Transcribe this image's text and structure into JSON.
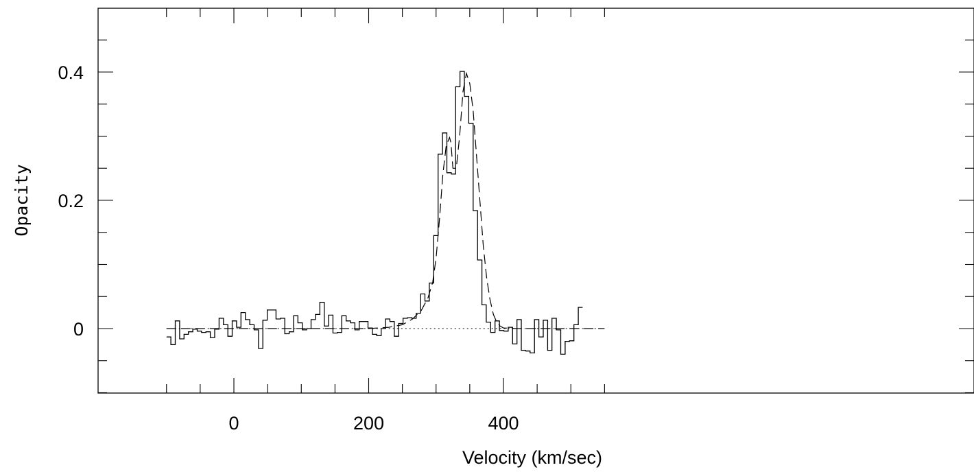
{
  "chart_data": {
    "type": "line",
    "title": "",
    "xlabel": "Velocity (km/sec)",
    "ylabel": "Opacity",
    "xlim": [
      -100,
      550
    ],
    "ylim": [
      -0.1,
      0.5
    ],
    "x_ticks": [
      0,
      200,
      400
    ],
    "x_tick_labels": [
      "0",
      "200",
      "400"
    ],
    "y_ticks": [
      0,
      0.2,
      0.4
    ],
    "y_tick_labels": [
      "0",
      "0.2",
      "0.4"
    ],
    "grid": false,
    "legend": "none",
    "series": [
      {
        "style": "histogram-step",
        "bin_width": 6.5,
        "x_start": -100,
        "values": [
          -0.013,
          -0.025,
          0.012,
          -0.016,
          -0.009,
          -0.005,
          -0.001,
          -0.004,
          -0.006,
          -0.005,
          -0.014,
          -0.001,
          0.016,
          0.006,
          -0.012,
          0.012,
          0.002,
          0.025,
          0.014,
          0.006,
          -0.002,
          -0.031,
          0.013,
          0.029,
          0.029,
          0.015,
          0.016,
          -0.008,
          -0.005,
          0.02,
          0.009,
          -0.002,
          0.0,
          0.014,
          0.022,
          0.041,
          0.004,
          0.021,
          -0.007,
          -0.006,
          0.02,
          0.012,
          0.009,
          -0.002,
          0.011,
          0.011,
          0.001,
          -0.009,
          -0.011,
          0.0,
          0.015,
          0.011,
          -0.012,
          0.008,
          0.016,
          0.017,
          0.016,
          0.024,
          0.054,
          0.043,
          0.071,
          0.145,
          0.272,
          0.305,
          0.243,
          0.241,
          0.377,
          0.401,
          0.362,
          0.32,
          0.184,
          0.107,
          0.037,
          0.01,
          -0.006,
          0.012,
          -0.003,
          -0.004,
          0.002,
          -0.024,
          0.014,
          -0.034,
          -0.035,
          -0.038,
          0.014,
          -0.013,
          0.013,
          -0.034,
          0.016,
          -0.002,
          -0.04,
          -0.02,
          -0.019,
          0.006,
          0.033
        ]
      },
      {
        "style": "dashed-fit",
        "x": [
          -100,
          200,
          230,
          250,
          265,
          278,
          288,
          295,
          300,
          305,
          310,
          315,
          320,
          322,
          325,
          330,
          335,
          340,
          345,
          350,
          355,
          360,
          365,
          370,
          375,
          380,
          385,
          390,
          395,
          400,
          420,
          550
        ],
        "values": [
          0.0,
          0.0,
          0.002,
          0.006,
          0.015,
          0.028,
          0.048,
          0.072,
          0.11,
          0.17,
          0.24,
          0.285,
          0.298,
          0.29,
          0.25,
          0.25,
          0.3,
          0.37,
          0.398,
          0.382,
          0.34,
          0.27,
          0.2,
          0.13,
          0.08,
          0.045,
          0.022,
          0.01,
          0.004,
          0.001,
          0.0,
          0.0
        ]
      },
      {
        "style": "dotted-baseline",
        "x": [
          -100,
          550
        ],
        "values": [
          0,
          0
        ]
      }
    ]
  }
}
